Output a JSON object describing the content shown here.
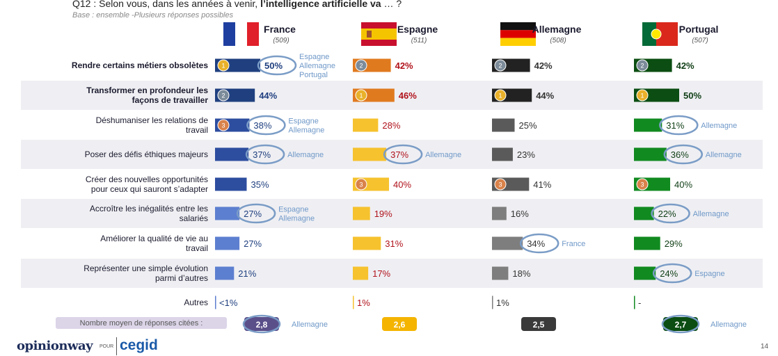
{
  "question": {
    "prefix": "Q12 : Selon vous, dans les années à venir, ",
    "bold": "l’intelligence artificielle va",
    "suffix": " … ?"
  },
  "base_note": "Base : ensemble -Plusieurs réponses possibles",
  "footer": {
    "logo": "opinionway",
    "pour": "POUR",
    "brand": "cegid",
    "page": "14"
  },
  "colors": {
    "France": "#1f3f7f",
    "Espagne": "#e9a81f",
    "Allemagne": "#4a4a4a",
    "Portugal": "#0e6b1c",
    "label_blue": "#1f3f7f",
    "label_red": "#b0121b",
    "highlight_ring": "#7a9cc6",
    "annotation": "#6f98c8"
  },
  "chart_data": {
    "type": "bar",
    "title": "Q12 : Selon vous, dans les années à venir, l’intelligence artificielle va … ?",
    "countries": [
      {
        "name": "France",
        "n": "(509)",
        "flag": "france-flag"
      },
      {
        "name": "Espagne",
        "n": "(511)",
        "flag": "spain-flag"
      },
      {
        "name": "Allemagne",
        "n": "(508)",
        "flag": "germany-flag"
      },
      {
        "name": "Portugal",
        "n": "(507)",
        "flag": "portugal-flag"
      }
    ],
    "categories": [
      "Rendre certains métiers obsolètes",
      "Transformer en profondeur les façons de travailler",
      "Déshumaniser les relations de travail",
      "Poser des défis éthiques majeurs",
      "Créer des nouvelles opportunités pour ceux qui sauront s’adapter",
      "Accroître les inégalités entre les salariés",
      "Améliorer la qualité de vie au travail",
      "Représenter une simple évolution parmi d’autres",
      "Autres"
    ],
    "bold_categories": [
      0,
      1
    ],
    "series": [
      {
        "name": "France",
        "values": [
          50,
          44,
          38,
          37,
          35,
          27,
          27,
          21,
          1
        ],
        "labels": [
          "50%",
          "44%",
          "38%",
          "37%",
          "35%",
          "27%",
          "27%",
          "21%",
          "<1%"
        ]
      },
      {
        "name": "Espagne",
        "values": [
          42,
          46,
          28,
          37,
          40,
          19,
          31,
          17,
          1
        ],
        "labels": [
          "42%",
          "46%",
          "28%",
          "37%",
          "40%",
          "19%",
          "31%",
          "17%",
          "1%"
        ]
      },
      {
        "name": "Allemagne",
        "values": [
          42,
          44,
          25,
          23,
          41,
          16,
          34,
          18,
          1
        ],
        "labels": [
          "42%",
          "44%",
          "25%",
          "23%",
          "41%",
          "16%",
          "34%",
          "18%",
          "1%"
        ]
      },
      {
        "name": "Portugal",
        "values": [
          42,
          50,
          31,
          36,
          40,
          22,
          29,
          24,
          0
        ],
        "labels": [
          "42%",
          "50%",
          "31%",
          "36%",
          "40%",
          "22%",
          "29%",
          "24%",
          "-"
        ]
      }
    ],
    "ranks": [
      [
        1,
        2,
        3,
        null,
        null,
        null,
        null,
        null,
        null
      ],
      [
        2,
        1,
        null,
        null,
        3,
        null,
        null,
        null,
        null
      ],
      [
        2,
        1,
        null,
        null,
        3,
        null,
        null,
        null,
        null
      ],
      [
        2,
        1,
        null,
        null,
        3,
        null,
        null,
        null,
        null
      ]
    ],
    "highlights": [
      {
        "series": 0,
        "row": 0,
        "note": "Espagne\nAllemagne\nPortugal"
      },
      {
        "series": 0,
        "row": 2,
        "note": "Espagne\nAllemagne"
      },
      {
        "series": 0,
        "row": 3,
        "note": "Allemagne"
      },
      {
        "series": 0,
        "row": 5,
        "note": "Espagne\nAllemagne"
      },
      {
        "series": 1,
        "row": 3,
        "note": "Allemagne"
      },
      {
        "series": 2,
        "row": 6,
        "note": "France"
      },
      {
        "series": 3,
        "row": 2,
        "note": "Allemagne"
      },
      {
        "series": 3,
        "row": 3,
        "note": "Allemagne"
      },
      {
        "series": 3,
        "row": 5,
        "note": "Allemagne"
      },
      {
        "series": 3,
        "row": 7,
        "note": "Espagne"
      }
    ],
    "average": {
      "label": "Nombre moyen de réponses citées :",
      "values": [
        "2,8",
        "2,6",
        "2,5",
        "2,7"
      ],
      "notes": [
        "Allemagne",
        "",
        "",
        "Allemagne"
      ]
    }
  }
}
